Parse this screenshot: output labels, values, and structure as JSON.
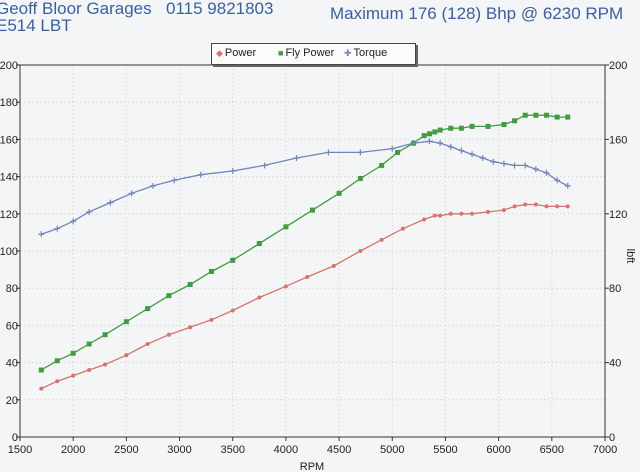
{
  "header": {
    "company": "Geoff Bloor Garages",
    "phone": "0115 9821803",
    "max_power": "Maximum 176 (128) Bhp @ 6230 RPM",
    "reg": "E514 LBT"
  },
  "colors": {
    "power": "#d9736b",
    "fly_power": "#3f9d3f",
    "torque": "#6f85bf",
    "header_text": "#3a5fa8"
  },
  "chart_data": {
    "type": "line",
    "xlabel": "RPM",
    "ylabel_left": "",
    "ylabel_right": "lbft",
    "xlim": [
      1500,
      7000
    ],
    "ylim_left": [
      0,
      200
    ],
    "ylim_right": [
      0,
      200
    ],
    "x_ticks": [
      1500,
      2000,
      2500,
      3000,
      3500,
      4000,
      4500,
      5000,
      5500,
      6000,
      6500,
      7000
    ],
    "y_ticks_left": [
      0,
      20,
      40,
      60,
      80,
      100,
      120,
      140,
      160,
      180,
      200
    ],
    "y_ticks_right": [
      0,
      40,
      80,
      120,
      160,
      200
    ],
    "grid": true,
    "legend": "top-center",
    "series": [
      {
        "name": "Power",
        "axis": "left",
        "marker": "dot",
        "x": [
          1700,
          1850,
          2000,
          2150,
          2300,
          2500,
          2700,
          2900,
          3100,
          3300,
          3500,
          3750,
          4000,
          4200,
          4450,
          4700,
          4900,
          5100,
          5300,
          5400,
          5450,
          5550,
          5650,
          5750,
          5900,
          6050,
          6150,
          6250,
          6350,
          6450,
          6550,
          6650
        ],
        "values": [
          26,
          30,
          33,
          36,
          39,
          44,
          50,
          55,
          59,
          63,
          68,
          75,
          81,
          86,
          92,
          100,
          106,
          112,
          117,
          119,
          119,
          120,
          120,
          120,
          121,
          122,
          124,
          125,
          125,
          124,
          124,
          124
        ]
      },
      {
        "name": "Fly Power",
        "axis": "left",
        "marker": "square",
        "x": [
          1700,
          1850,
          2000,
          2150,
          2300,
          2500,
          2700,
          2900,
          3100,
          3300,
          3500,
          3750,
          4000,
          4250,
          4500,
          4700,
          4900,
          5050,
          5200,
          5300,
          5350,
          5400,
          5450,
          5550,
          5650,
          5750,
          5900,
          6050,
          6150,
          6250,
          6350,
          6450,
          6550,
          6650
        ],
        "values": [
          36,
          41,
          45,
          50,
          55,
          62,
          69,
          76,
          82,
          89,
          95,
          104,
          113,
          122,
          131,
          139,
          146,
          153,
          158,
          162,
          163,
          164,
          165,
          166,
          166,
          167,
          167,
          168,
          170,
          173,
          173,
          173,
          172,
          172
        ]
      },
      {
        "name": "Torque",
        "axis": "right",
        "marker": "plus",
        "x": [
          1700,
          1850,
          2000,
          2150,
          2350,
          2550,
          2750,
          2950,
          3200,
          3500,
          3800,
          4100,
          4400,
          4700,
          5000,
          5200,
          5350,
          5450,
          5550,
          5650,
          5750,
          5850,
          5950,
          6050,
          6150,
          6250,
          6350,
          6450,
          6550,
          6650
        ],
        "values": [
          109,
          112,
          116,
          121,
          126,
          131,
          135,
          138,
          141,
          143,
          146,
          150,
          153,
          153,
          155,
          158,
          159,
          158,
          156,
          154,
          152,
          150,
          148,
          147,
          146,
          146,
          144,
          142,
          138,
          135
        ]
      }
    ]
  }
}
